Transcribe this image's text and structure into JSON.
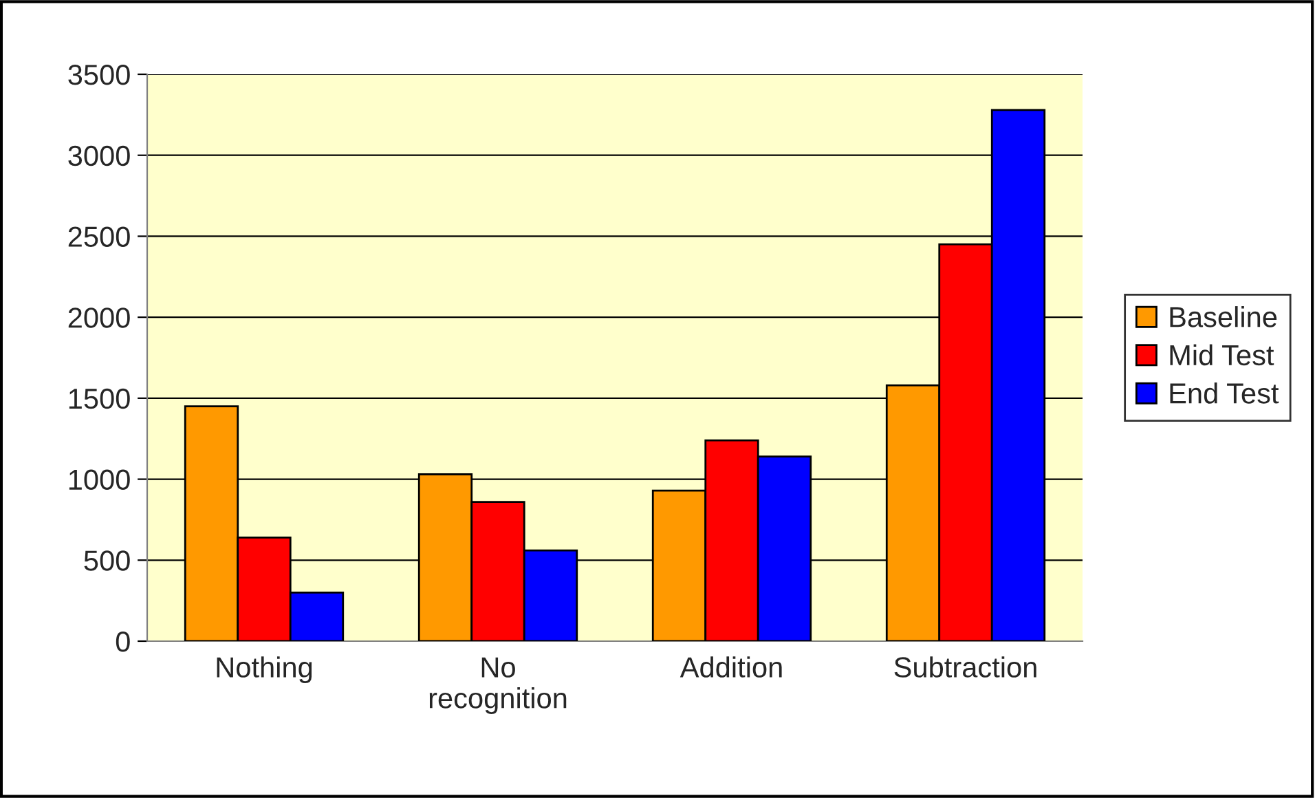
{
  "chart_data": {
    "type": "bar",
    "categories": [
      "Nothing",
      "No\nrecognition",
      "Addition",
      "Subtraction"
    ],
    "series": [
      {
        "name": "Baseline",
        "color": "#ff9900",
        "values": [
          1450,
          1030,
          930,
          1580
        ]
      },
      {
        "name": "Mid Test",
        "color": "#ff0000",
        "values": [
          640,
          860,
          1240,
          2450
        ]
      },
      {
        "name": "End Test",
        "color": "#0000ff",
        "values": [
          300,
          560,
          1140,
          3280
        ]
      }
    ],
    "ylim": [
      0,
      3500
    ],
    "yticks": [
      0,
      500,
      1000,
      1500,
      2000,
      2500,
      3000,
      3500
    ],
    "grid": "y",
    "legend": "right"
  }
}
